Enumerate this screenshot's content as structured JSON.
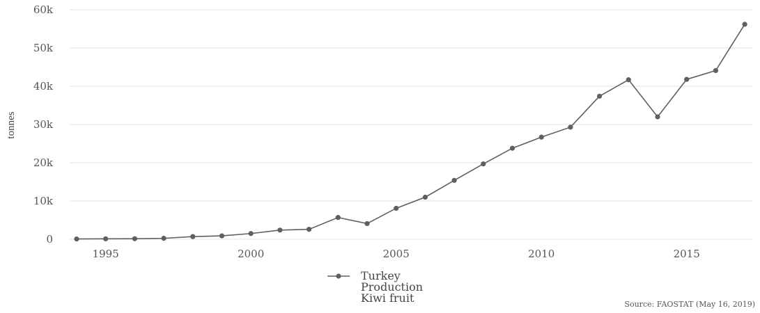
{
  "chart_data": {
    "type": "line",
    "ylabel": "tonnes",
    "ylim": [
      0,
      60000
    ],
    "xlim": [
      1994,
      2017
    ],
    "y_ticks": [
      0,
      10000,
      20000,
      30000,
      40000,
      50000,
      60000
    ],
    "y_tick_labels": [
      "0",
      "10k",
      "20k",
      "30k",
      "40k",
      "50k",
      "60k"
    ],
    "x_ticks": [
      1995,
      2000,
      2005,
      2010,
      2015
    ],
    "x_tick_labels": [
      "1995",
      "2000",
      "2005",
      "2010",
      "2015"
    ],
    "grid": "horizontal",
    "legend_position": "bottom",
    "series": [
      {
        "name_lines": [
          "Turkey",
          "Production",
          "Kiwi fruit"
        ],
        "color": "#5f5f5f",
        "x": [
          1994,
          1995,
          1996,
          1997,
          1998,
          1999,
          2000,
          2001,
          2002,
          2003,
          2004,
          2005,
          2006,
          2007,
          2008,
          2009,
          2010,
          2011,
          2012,
          2013,
          2014,
          2015,
          2016,
          2017
        ],
        "y": [
          80,
          120,
          150,
          250,
          700,
          900,
          1500,
          2400,
          2600,
          5700,
          4100,
          8100,
          11000,
          15400,
          19700,
          23800,
          26700,
          29300,
          37400,
          41700,
          32000,
          41800,
          44100,
          56200
        ]
      }
    ],
    "source": "Source: FAOSTAT (May 16, 2019)"
  }
}
